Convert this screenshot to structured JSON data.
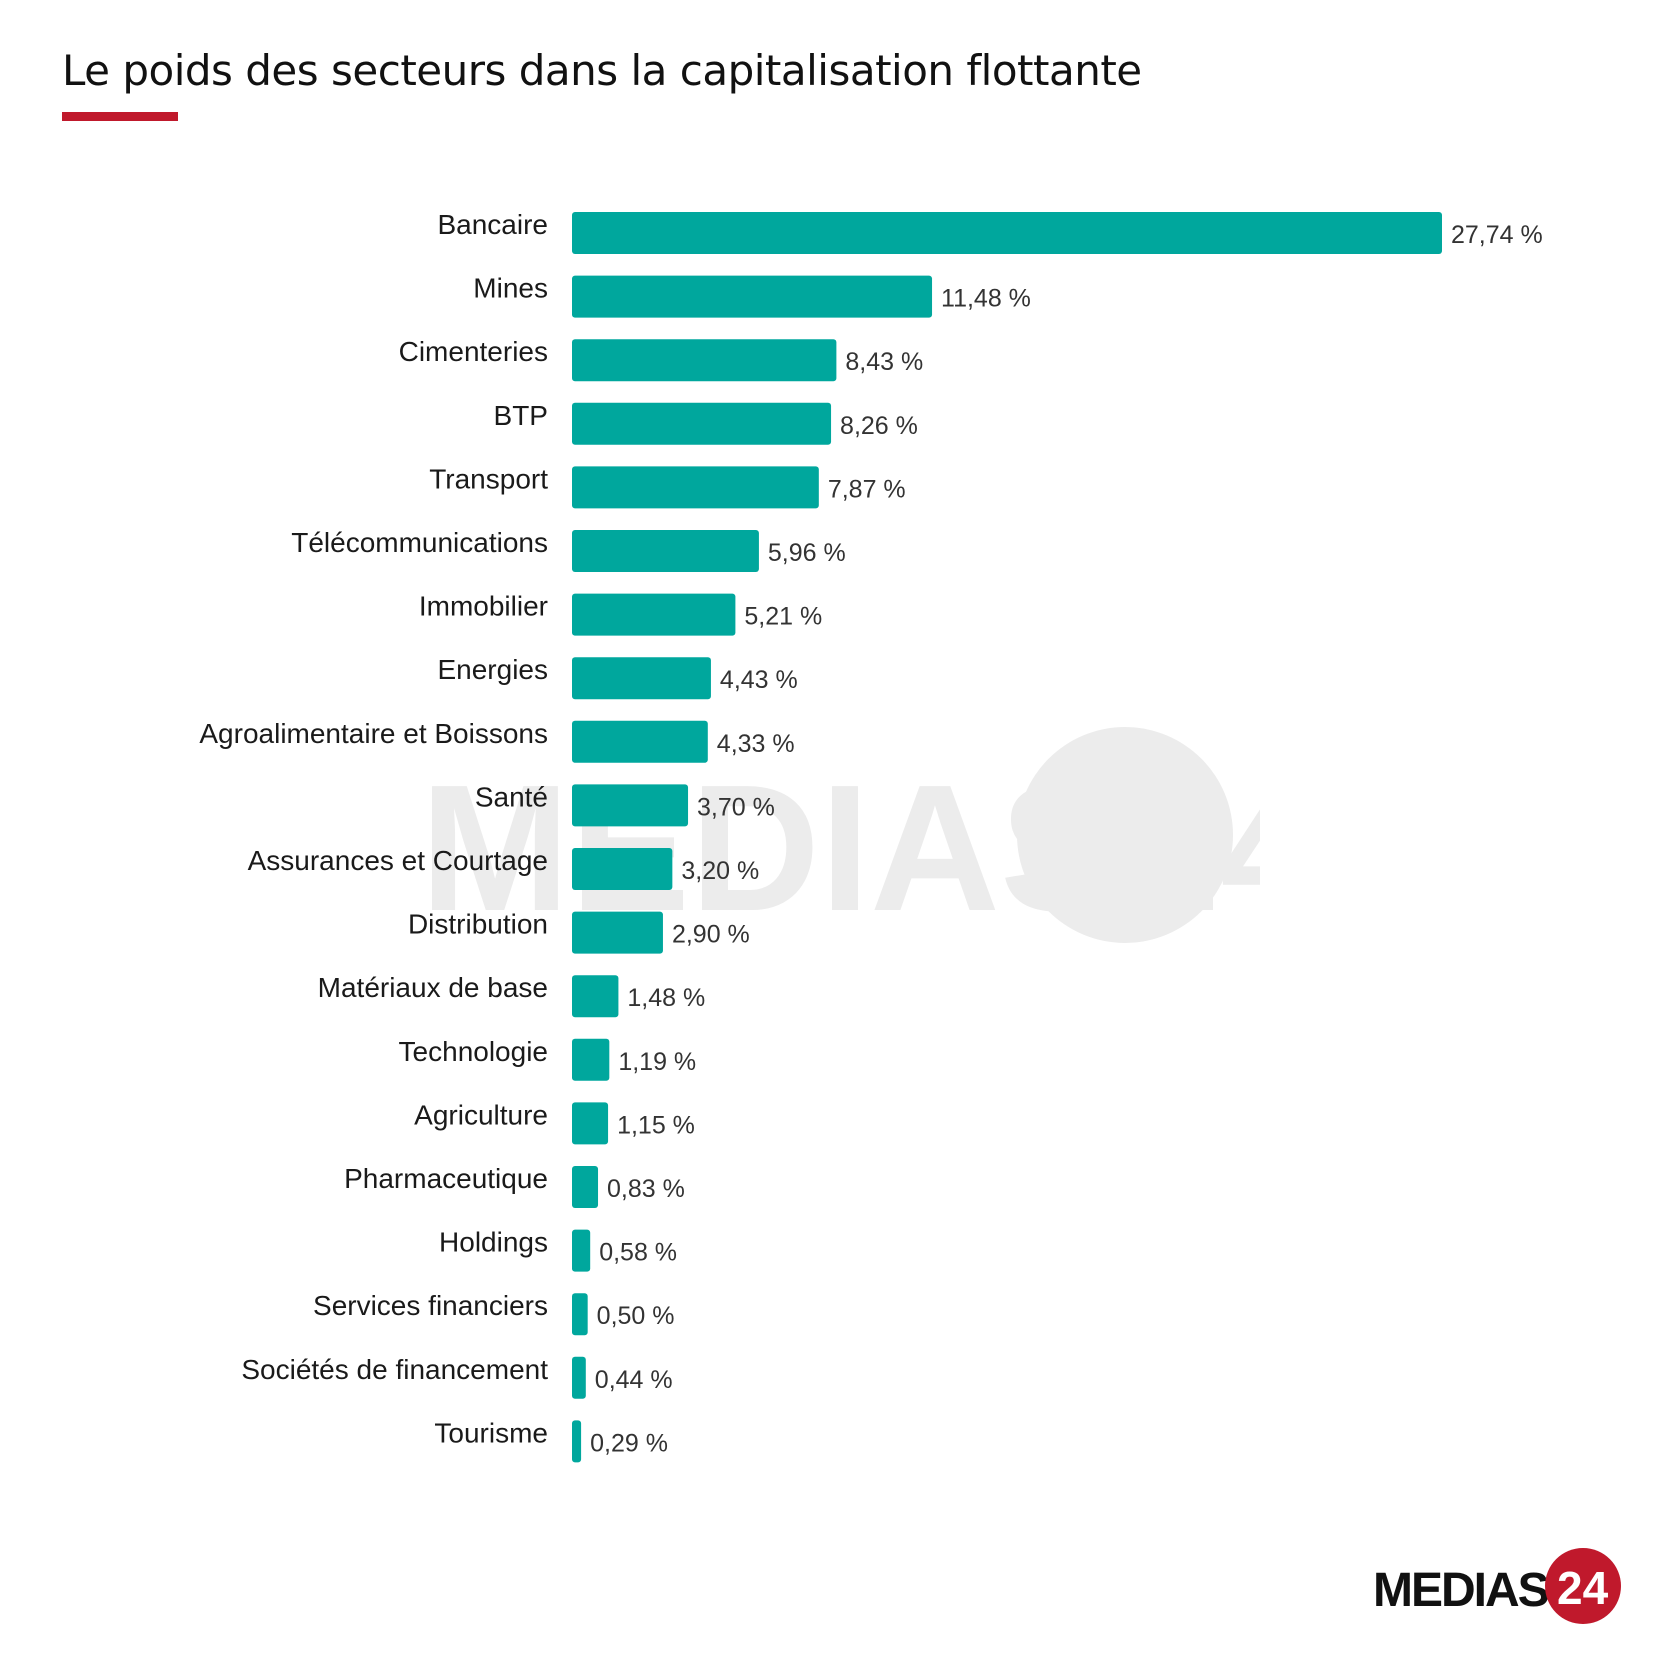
{
  "title": "Le poids des secteurs dans la capitalisation flottante",
  "colors": {
    "bar": "#00A79D",
    "accent": "#C0192C",
    "title": "#111111",
    "watermark": "#ececec"
  },
  "watermark": "MEDIAS24",
  "brand": {
    "text": "MEDIAS",
    "number": "24"
  },
  "chart_data": {
    "type": "bar",
    "orientation": "horizontal",
    "title": "Le poids des secteurs dans la capitalisation flottante",
    "unit": "%",
    "xlim": [
      0,
      27.74
    ],
    "grid": false,
    "categories": [
      "Bancaire",
      "Mines",
      "Cimenteries",
      "BTP",
      "Transport",
      "Télécommunications",
      "Immobilier",
      "Energies",
      "Agroalimentaire et Boissons",
      "Santé",
      "Assurances et Courtage",
      "Distribution",
      "Matériaux de base",
      "Technologie",
      "Agriculture",
      "Pharmaceutique",
      "Holdings",
      "Services financiers",
      "Sociétés de financement",
      "Tourisme"
    ],
    "values": [
      27.74,
      11.48,
      8.43,
      8.26,
      7.87,
      5.96,
      5.21,
      4.43,
      4.33,
      3.7,
      3.2,
      2.9,
      1.48,
      1.19,
      1.15,
      0.83,
      0.58,
      0.5,
      0.44,
      0.29
    ],
    "value_labels": [
      "27,74 %",
      "11,48 %",
      "8,43 %",
      "8,26 %",
      "7,87 %",
      "5,96 %",
      "5,21 %",
      "4,43 %",
      "4,33 %",
      "3,70 %",
      "3,20 %",
      "2,90 %",
      "1,48 %",
      "1,19 %",
      "1,15 %",
      "0,83 %",
      "0,58 %",
      "0,50 %",
      "0,44 %",
      "0,29 %"
    ]
  }
}
